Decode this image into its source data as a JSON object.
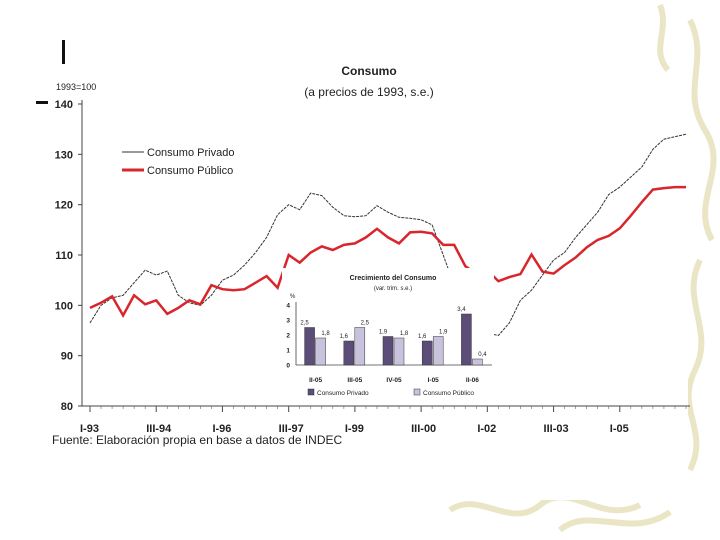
{
  "source_note": "Fuente: Elaboración propia en base a datos de INDEC",
  "colors": {
    "private": "#333333",
    "public": "#d9262c",
    "inset_private": "#5b4d78",
    "inset_public": "#c9c2dd",
    "background_panel": "#ffffff",
    "decor": "#e9e6c8"
  },
  "chart_data": [
    {
      "type": "line",
      "title": "Consumo",
      "subtitle": "(a precios de 1993, s.e.)",
      "base_label": "1993=100",
      "ylim": [
        80,
        140
      ],
      "yticks": [
        80,
        90,
        100,
        110,
        120,
        130,
        140
      ],
      "xlim": [
        0,
        52
      ],
      "xticks": [
        {
          "label": "I-93",
          "x": 0
        },
        {
          "label": "III-94",
          "x": 6
        },
        {
          "label": "I-96",
          "x": 12
        },
        {
          "label": "III-97",
          "x": 18
        },
        {
          "label": "I-99",
          "x": 24
        },
        {
          "label": "III-00",
          "x": 30
        },
        {
          "label": "I-02",
          "x": 36
        },
        {
          "label": "III-03",
          "x": 42
        },
        {
          "label": "I-05",
          "x": 48
        }
      ],
      "grid": false,
      "legend_position": "top-left",
      "series": [
        {
          "name": "Consumo Privado",
          "x": [
            0,
            1,
            2,
            3,
            4,
            5,
            6,
            7,
            8,
            9,
            10,
            11,
            12,
            13,
            14,
            15,
            16,
            17,
            18,
            19,
            20,
            21,
            22,
            23,
            24,
            25,
            26,
            27,
            28,
            29,
            30,
            31,
            32,
            33,
            34,
            35,
            36,
            37,
            38,
            39,
            40,
            41,
            42,
            43,
            44,
            45,
            46,
            47,
            48,
            49,
            50,
            51,
            52,
            53,
            54
          ],
          "values": [
            96.5,
            100,
            101.5,
            102,
            104.5,
            107,
            106,
            106.8,
            102,
            100.5,
            100,
            102,
            105,
            106,
            108,
            110.5,
            113.5,
            118,
            120,
            119,
            122.3,
            121.8,
            119.5,
            117.8,
            117.6,
            117.8,
            119.8,
            118.5,
            117.5,
            117.3,
            117,
            116,
            110,
            104,
            96,
            95,
            94.5,
            94,
            96.5,
            101,
            103,
            106,
            109,
            110.5,
            113.5,
            116,
            118.5,
            122,
            123.5,
            125.5,
            127.5,
            131,
            133,
            133.5,
            134
          ]
        },
        {
          "name": "Consumo Público",
          "x": [
            0,
            1,
            2,
            3,
            4,
            5,
            6,
            7,
            8,
            9,
            10,
            11,
            12,
            13,
            14,
            15,
            16,
            17,
            18,
            19,
            20,
            21,
            22,
            23,
            24,
            25,
            26,
            27,
            28,
            29,
            30,
            31,
            32,
            33,
            34,
            35,
            36,
            37,
            38,
            39,
            40,
            41,
            42,
            43,
            44,
            45,
            46,
            47,
            48,
            49,
            50,
            51,
            52,
            53,
            54
          ],
          "values": [
            99.5,
            100.5,
            101.8,
            98,
            102,
            100.2,
            101,
            98.3,
            99.5,
            101,
            100.2,
            104,
            103.2,
            103,
            103.2,
            104.5,
            105.8,
            103.5,
            110,
            108.5,
            110.5,
            111.7,
            111,
            112,
            112.3,
            113.5,
            115.2,
            113.5,
            112.3,
            114.5,
            114.6,
            114.3,
            112,
            112,
            107.8,
            106.3,
            107,
            104.8,
            105.6,
            106.2,
            110.1,
            106.7,
            106.3,
            108,
            109.5,
            111.5,
            113,
            113.8,
            115.3,
            117.8,
            120.5,
            123,
            123.3,
            123.5,
            123.5
          ]
        }
      ]
    },
    {
      "type": "bar",
      "title": "Crecimiento del Consumo",
      "subtitle": "(var. trim. s.e.)",
      "ylabel": "%",
      "ylim": [
        0,
        4
      ],
      "yticks": [
        0,
        1,
        2,
        3,
        4
      ],
      "categories": [
        "II-05",
        "III-05",
        "IV-05",
        "I-05",
        "II-06"
      ],
      "series": [
        {
          "name": "Consumo Privado",
          "values": [
            2.5,
            1.6,
            1.9,
            1.6,
            3.4
          ],
          "labels": [
            "2,5",
            "1,6",
            "1,9",
            "1,6",
            "3,4"
          ]
        },
        {
          "name": "Consumo Público",
          "values": [
            1.8,
            2.5,
            1.8,
            1.9,
            0.4
          ],
          "labels": [
            "1,8",
            "2,5",
            "1,8",
            "1,9",
            "0,4"
          ]
        }
      ]
    }
  ]
}
